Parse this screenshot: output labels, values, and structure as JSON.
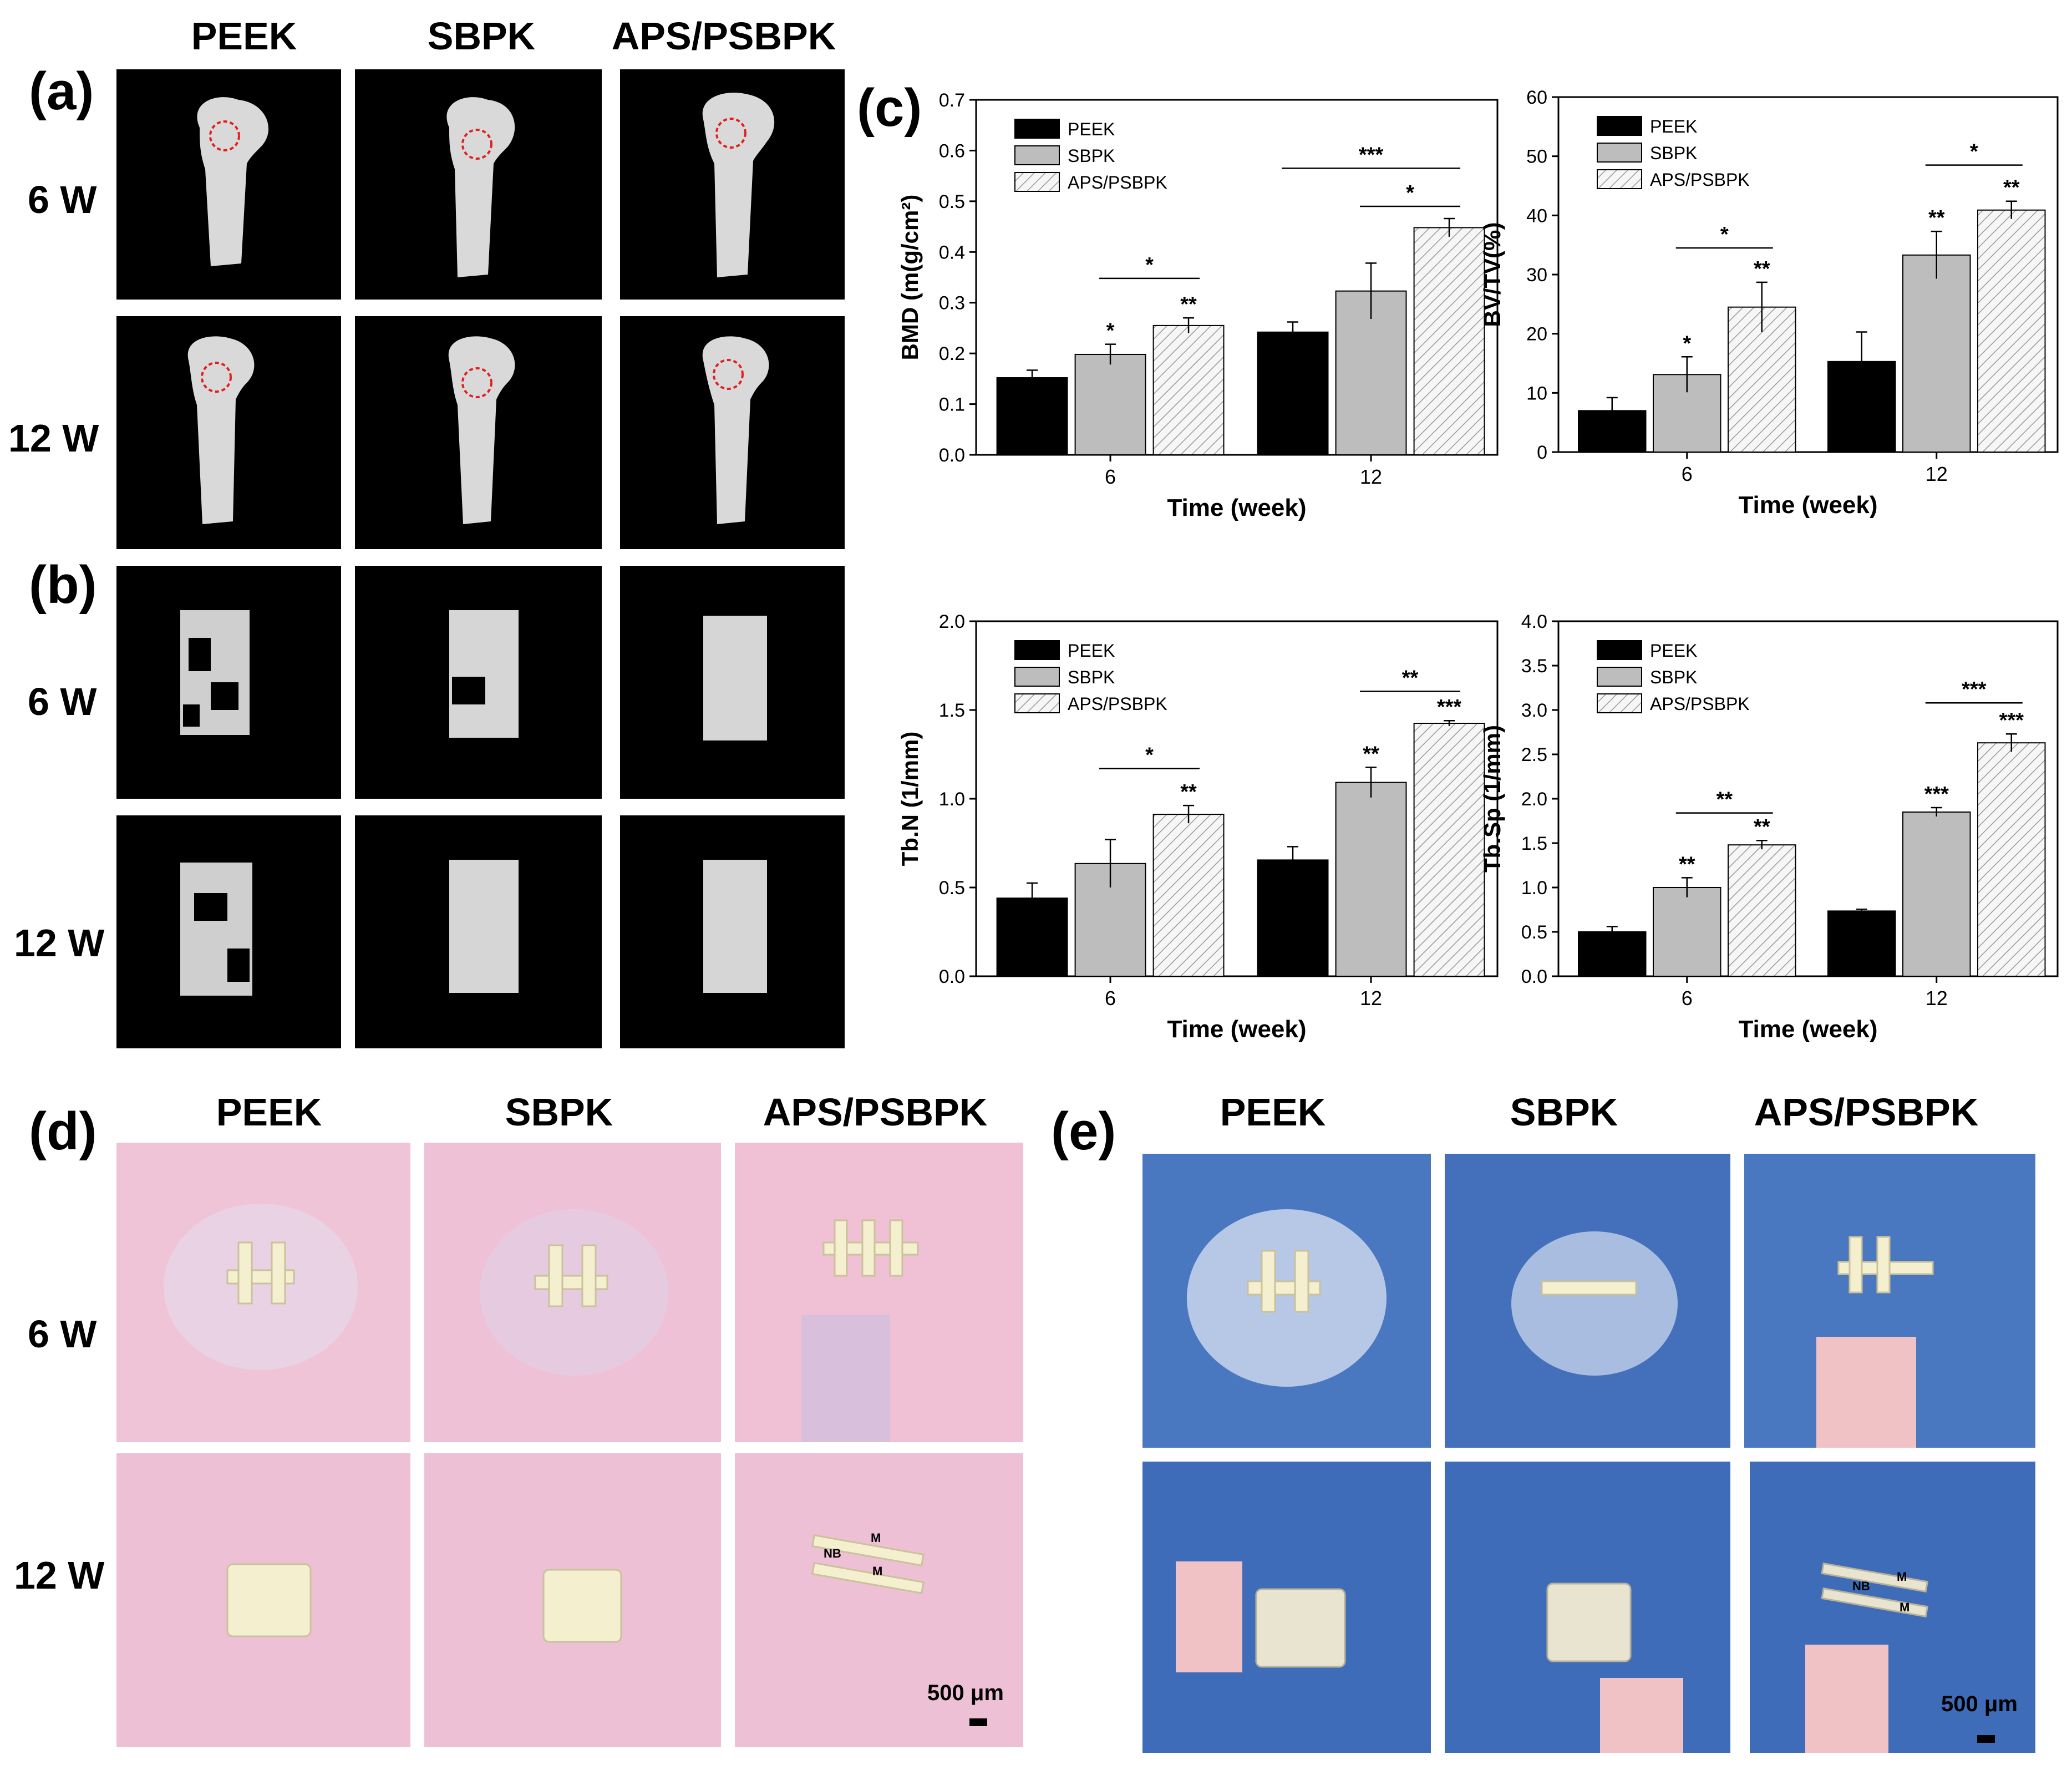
{
  "panel_labels": {
    "a": "(a)",
    "b": "(b)",
    "c": "(c)",
    "d": "(d)",
    "e": "(e)"
  },
  "groups": [
    "PEEK",
    "SBPK",
    "APS/PSBPK"
  ],
  "timepoints": [
    "6 W",
    "12 W"
  ],
  "scale_bar": "500 μm",
  "histology_labels": {
    "nb": "NB",
    "m": "M"
  },
  "colors": {
    "peek": "#000000",
    "sbpk": "#bdbdbd",
    "aps": "#f4f4f4",
    "he_bg": "#f1c3d6",
    "mt_bg": "#4a78c0"
  },
  "chart_data": [
    {
      "type": "bar",
      "id": "bmd",
      "categories": [
        "6",
        "12"
      ],
      "xlabel": "Time (week)",
      "ylabel": "BMD (m(g/cm²)",
      "ylim": [
        0,
        0.7
      ],
      "yticks": [
        "0.0",
        "0.1",
        "0.2",
        "0.3",
        "0.4",
        "0.5",
        "0.6",
        "0.7"
      ],
      "legend_position": "top-left",
      "series": [
        {
          "name": "PEEK",
          "values": [
            0.152,
            0.242
          ],
          "errors": [
            0.015,
            0.02
          ],
          "marks": [
            "",
            ""
          ]
        },
        {
          "name": "SBPK",
          "values": [
            0.198,
            0.323
          ],
          "errors": [
            0.02,
            0.055
          ],
          "marks": [
            "*",
            ""
          ]
        },
        {
          "name": "APS/PSBPK",
          "values": [
            0.255,
            0.448
          ],
          "errors": [
            0.015,
            0.018
          ],
          "marks": [
            "**",
            ""
          ]
        }
      ],
      "brackets": [
        {
          "cat": 0,
          "from": 1,
          "to": 2,
          "value": 0.348,
          "label": "*"
        },
        {
          "cat": 1,
          "from": 1,
          "to": 2,
          "value": 0.49,
          "label": "*"
        },
        {
          "cat": 1,
          "from": 0,
          "to": 2,
          "value": 0.565,
          "label": "***"
        }
      ]
    },
    {
      "type": "bar",
      "id": "bvtv",
      "categories": [
        "6",
        "12"
      ],
      "xlabel": "Time (week)",
      "ylabel": "BV/TV(%)",
      "ylim": [
        0,
        60
      ],
      "yticks": [
        "0",
        "10",
        "20",
        "30",
        "40",
        "50",
        "60"
      ],
      "legend_position": "top-left",
      "series": [
        {
          "name": "PEEK",
          "values": [
            7,
            15.3
          ],
          "errors": [
            2.2,
            5
          ],
          "marks": [
            "",
            ""
          ]
        },
        {
          "name": "SBPK",
          "values": [
            13.1,
            33.3
          ],
          "errors": [
            3,
            4
          ],
          "marks": [
            "*",
            "**"
          ]
        },
        {
          "name": "APS/PSBPK",
          "values": [
            24.5,
            40.9
          ],
          "errors": [
            4.2,
            1.5
          ],
          "marks": [
            "**",
            "**"
          ]
        }
      ],
      "brackets": [
        {
          "cat": 0,
          "from": 1,
          "to": 2,
          "value": 34.5,
          "label": "*"
        },
        {
          "cat": 1,
          "from": 1,
          "to": 2,
          "value": 48.5,
          "label": "*"
        }
      ]
    },
    {
      "type": "bar",
      "id": "tbn",
      "categories": [
        "6",
        "12"
      ],
      "xlabel": "Time (week)",
      "ylabel": "Tb.N (1/mm)",
      "ylim": [
        0,
        2.0
      ],
      "yticks": [
        "0.0",
        "0.5",
        "1.0",
        "1.5",
        "2.0"
      ],
      "legend_position": "top-left",
      "series": [
        {
          "name": "PEEK",
          "values": [
            0.44,
            0.655
          ],
          "errors": [
            0.085,
            0.075
          ],
          "marks": [
            "",
            ""
          ]
        },
        {
          "name": "SBPK",
          "values": [
            0.635,
            1.092
          ],
          "errors": [
            0.135,
            0.085
          ],
          "marks": [
            "",
            "**"
          ]
        },
        {
          "name": "APS/PSBPK",
          "values": [
            0.912,
            1.425
          ],
          "errors": [
            0.05,
            0.015
          ],
          "marks": [
            "**",
            "***"
          ]
        }
      ],
      "brackets": [
        {
          "cat": 0,
          "from": 1,
          "to": 2,
          "value": 1.17,
          "label": "*"
        },
        {
          "cat": 1,
          "from": 1,
          "to": 2,
          "value": 1.605,
          "label": "**"
        }
      ]
    },
    {
      "type": "bar",
      "id": "tbsp",
      "categories": [
        "6",
        "12"
      ],
      "xlabel": "Time (week)",
      "ylabel": "Tb.Sp (1/mm)",
      "ylim": [
        0,
        4.0
      ],
      "yticks": [
        "0.0",
        "0.5",
        "1.0",
        "1.5",
        "2.0",
        "2.5",
        "3.0",
        "3.5",
        "4.0"
      ],
      "legend_position": "top-left",
      "series": [
        {
          "name": "PEEK",
          "values": [
            0.5,
            0.735
          ],
          "errors": [
            0.06,
            0.02
          ],
          "marks": [
            "",
            ""
          ]
        },
        {
          "name": "SBPK",
          "values": [
            1.0,
            1.85
          ],
          "errors": [
            0.11,
            0.05
          ],
          "marks": [
            "**",
            "***"
          ]
        },
        {
          "name": "APS/PSBPK",
          "values": [
            1.48,
            2.63
          ],
          "errors": [
            0.05,
            0.1
          ],
          "marks": [
            "**",
            "***"
          ]
        }
      ],
      "brackets": [
        {
          "cat": 0,
          "from": 1,
          "to": 2,
          "value": 1.84,
          "label": "**"
        },
        {
          "cat": 1,
          "from": 1,
          "to": 2,
          "value": 3.08,
          "label": "***"
        }
      ]
    }
  ]
}
